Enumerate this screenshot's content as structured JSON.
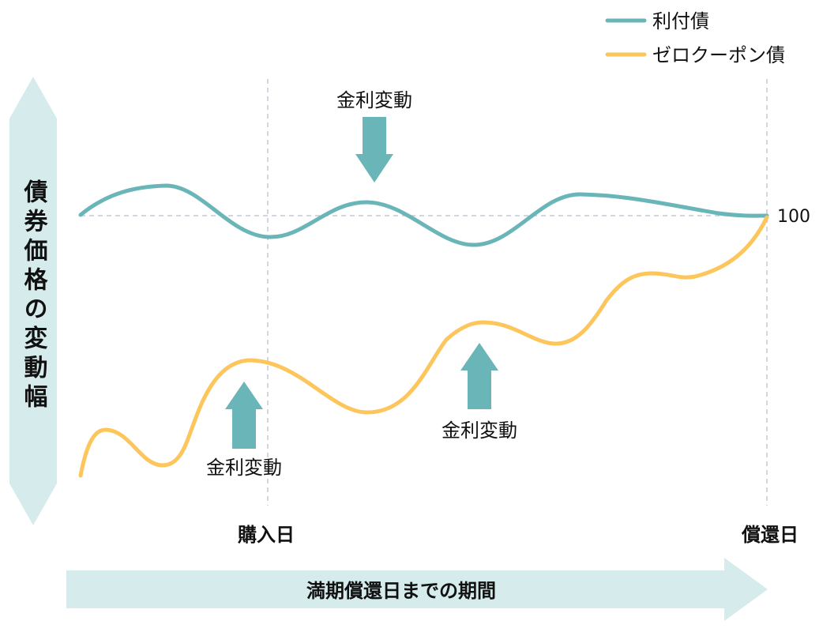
{
  "legend": {
    "items": [
      {
        "label": "利付債",
        "color": "#6ab5b8"
      },
      {
        "label": "ゼロクーポン債",
        "color": "#fcc65c"
      }
    ]
  },
  "y_axis": {
    "label": "債券価格の変動幅",
    "color": "#d6ecec"
  },
  "x_axis": {
    "label": "満期償還日までの期間",
    "color": "#d6ecec"
  },
  "markers": {
    "purchase": "購入日",
    "redemption": "償還日"
  },
  "par_value_label": "100",
  "annotations": {
    "top_arrow": "金利変動",
    "bottom_left_arrow": "金利変動",
    "bottom_right_arrow": "金利変動"
  },
  "colors": {
    "coupon_bond": "#6ab5b8",
    "zero_coupon_bond": "#fcc65c",
    "arrow": "#6ab5b8",
    "guide": "#c4c8d4"
  }
}
